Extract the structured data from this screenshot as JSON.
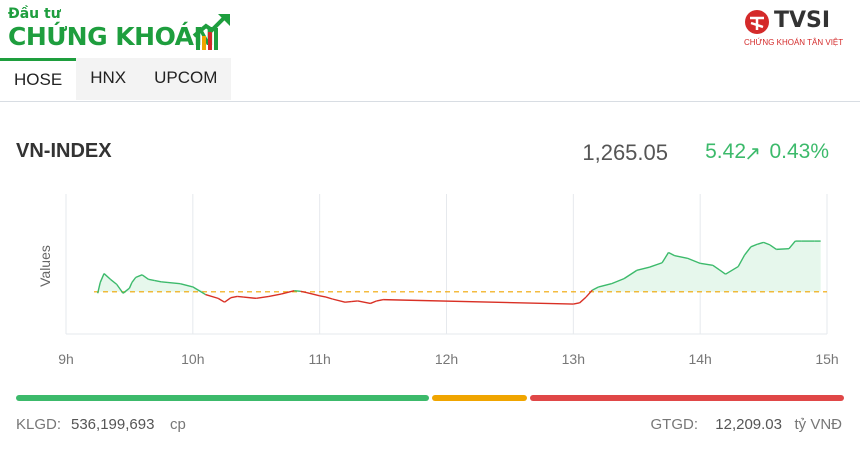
{
  "brand": {
    "left_small": "Đầu tư",
    "left_big": "CHỨNG KHOÁN",
    "right_name": "TVSI",
    "right_sub": "CHỨNG KHOÁN TÂN VIỆT",
    "green": "#1e9e3e",
    "red": "#d42a2a"
  },
  "tabs": [
    {
      "label": "HOSE",
      "active": true
    },
    {
      "label": "HNX",
      "active": false
    },
    {
      "label": "UPCOM",
      "active": false
    }
  ],
  "index": {
    "name": "VN-INDEX",
    "value": "1,265.05",
    "change": "5.42",
    "change_icon": "arrow-up-right-icon",
    "percent": "0.43%"
  },
  "chart_data": {
    "type": "area",
    "title": "",
    "xlabel": "",
    "ylabel": "Values",
    "x_ticks": [
      "9h",
      "10h",
      "11h",
      "12h",
      "13h",
      "14h",
      "15h"
    ],
    "xlim": [
      9,
      15
    ],
    "ylim": [
      1253,
      1275
    ],
    "reference": 1259.63,
    "grid": "vertical",
    "colors": {
      "up": "#3cba6b",
      "down": "#d93025",
      "reference": "#f0a500",
      "fill": "#e6f7ec"
    },
    "series": [
      {
        "x": [
          9.25,
          9.27,
          9.3,
          9.35,
          9.4,
          9.45,
          9.5,
          9.52,
          9.55,
          9.6,
          9.65,
          9.7,
          9.75,
          9.8,
          9.9,
          10.0,
          10.1,
          10.2,
          10.25,
          10.3,
          10.35,
          10.4,
          10.5,
          10.6,
          10.7,
          10.8,
          10.85,
          10.9,
          11.0,
          11.05,
          11.1,
          11.2,
          11.25,
          11.3,
          11.4,
          11.45,
          11.5,
          13.0,
          13.05,
          13.1,
          13.15,
          13.2,
          13.3,
          13.4,
          13.5,
          13.6,
          13.7,
          13.75,
          13.8,
          13.9,
          14.0,
          14.1,
          14.15,
          14.2,
          14.3,
          14.35,
          14.4,
          14.45,
          14.5,
          14.55,
          14.6,
          14.7,
          14.75,
          14.8,
          14.9,
          14.95
        ],
        "y": [
          1259.4,
          1261.1,
          1262.5,
          1261.6,
          1260.8,
          1259.4,
          1260.2,
          1261.1,
          1261.9,
          1262.3,
          1261.6,
          1261.4,
          1261.2,
          1261.1,
          1260.9,
          1260.4,
          1259.2,
          1258.6,
          1258.0,
          1258.7,
          1258.9,
          1258.8,
          1258.6,
          1258.9,
          1259.3,
          1259.8,
          1259.7,
          1259.5,
          1259.0,
          1258.8,
          1258.5,
          1258.0,
          1258.1,
          1258.2,
          1257.8,
          1258.2,
          1258.4,
          1257.7,
          1257.9,
          1258.8,
          1259.9,
          1260.4,
          1260.9,
          1261.7,
          1263.0,
          1263.5,
          1264.2,
          1265.8,
          1265.3,
          1264.9,
          1264.1,
          1263.8,
          1263.1,
          1262.4,
          1263.6,
          1265.4,
          1266.7,
          1267.1,
          1267.4,
          1267.0,
          1266.3,
          1266.4,
          1267.6,
          1267.6,
          1267.6,
          1267.6
        ]
      }
    ]
  },
  "bar": {
    "segments": [
      {
        "name": "advancers",
        "fraction": 0.502,
        "color": "#3cba6b"
      },
      {
        "name": "unchanged",
        "fraction": 0.116,
        "color": "#f0a500"
      },
      {
        "name": "decliners",
        "fraction": 0.382,
        "color": "#e04747"
      }
    ]
  },
  "stats": {
    "klgd_label": "KLGD:",
    "klgd_value": "536,199,693",
    "klgd_unit": "cp",
    "gtgd_label": "GTGD:",
    "gtgd_value": "12,209.03",
    "gtgd_unit": "tỷ VNĐ"
  }
}
